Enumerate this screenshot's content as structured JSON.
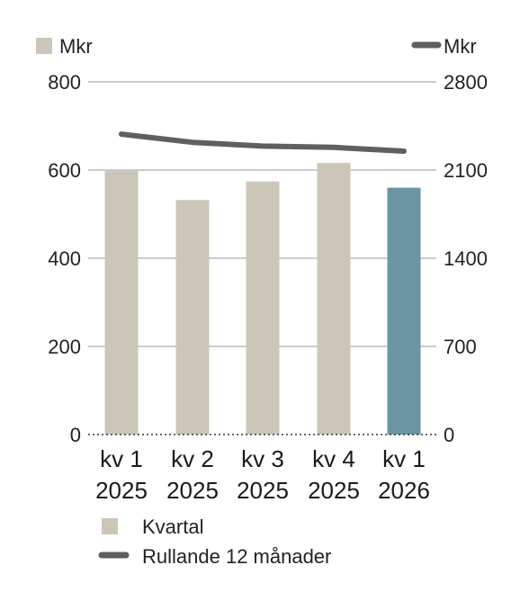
{
  "chart_data": {
    "type": "bar",
    "left_unit": "Mkr",
    "right_unit": "Mkr",
    "categories": [
      [
        "kv 1",
        "2025"
      ],
      [
        "kv 2",
        "2025"
      ],
      [
        "kv 3",
        "2025"
      ],
      [
        "kv 4",
        "2025"
      ],
      [
        "kv 1",
        "2026"
      ]
    ],
    "left_axis": {
      "ylim": [
        0,
        800
      ],
      "ticks": [
        0,
        200,
        400,
        600,
        800
      ]
    },
    "right_axis": {
      "ylim": [
        0,
        2800
      ],
      "ticks": [
        0,
        700,
        1400,
        2100,
        2800
      ]
    },
    "series": [
      {
        "name": "Kvartal",
        "type": "bar",
        "axis": "left",
        "values": [
          598,
          532,
          574,
          616,
          560
        ],
        "colors": [
          "#ccc6b9",
          "#ccc6b9",
          "#ccc6b9",
          "#ccc6b9",
          "#6b95a2"
        ]
      },
      {
        "name": "Rullande 12 månader",
        "type": "line",
        "axis": "right",
        "values": [
          2385,
          2320,
          2290,
          2280,
          2250
        ],
        "color": "#5f5f5c"
      }
    ],
    "grid": true,
    "legend_position": "bottom"
  }
}
